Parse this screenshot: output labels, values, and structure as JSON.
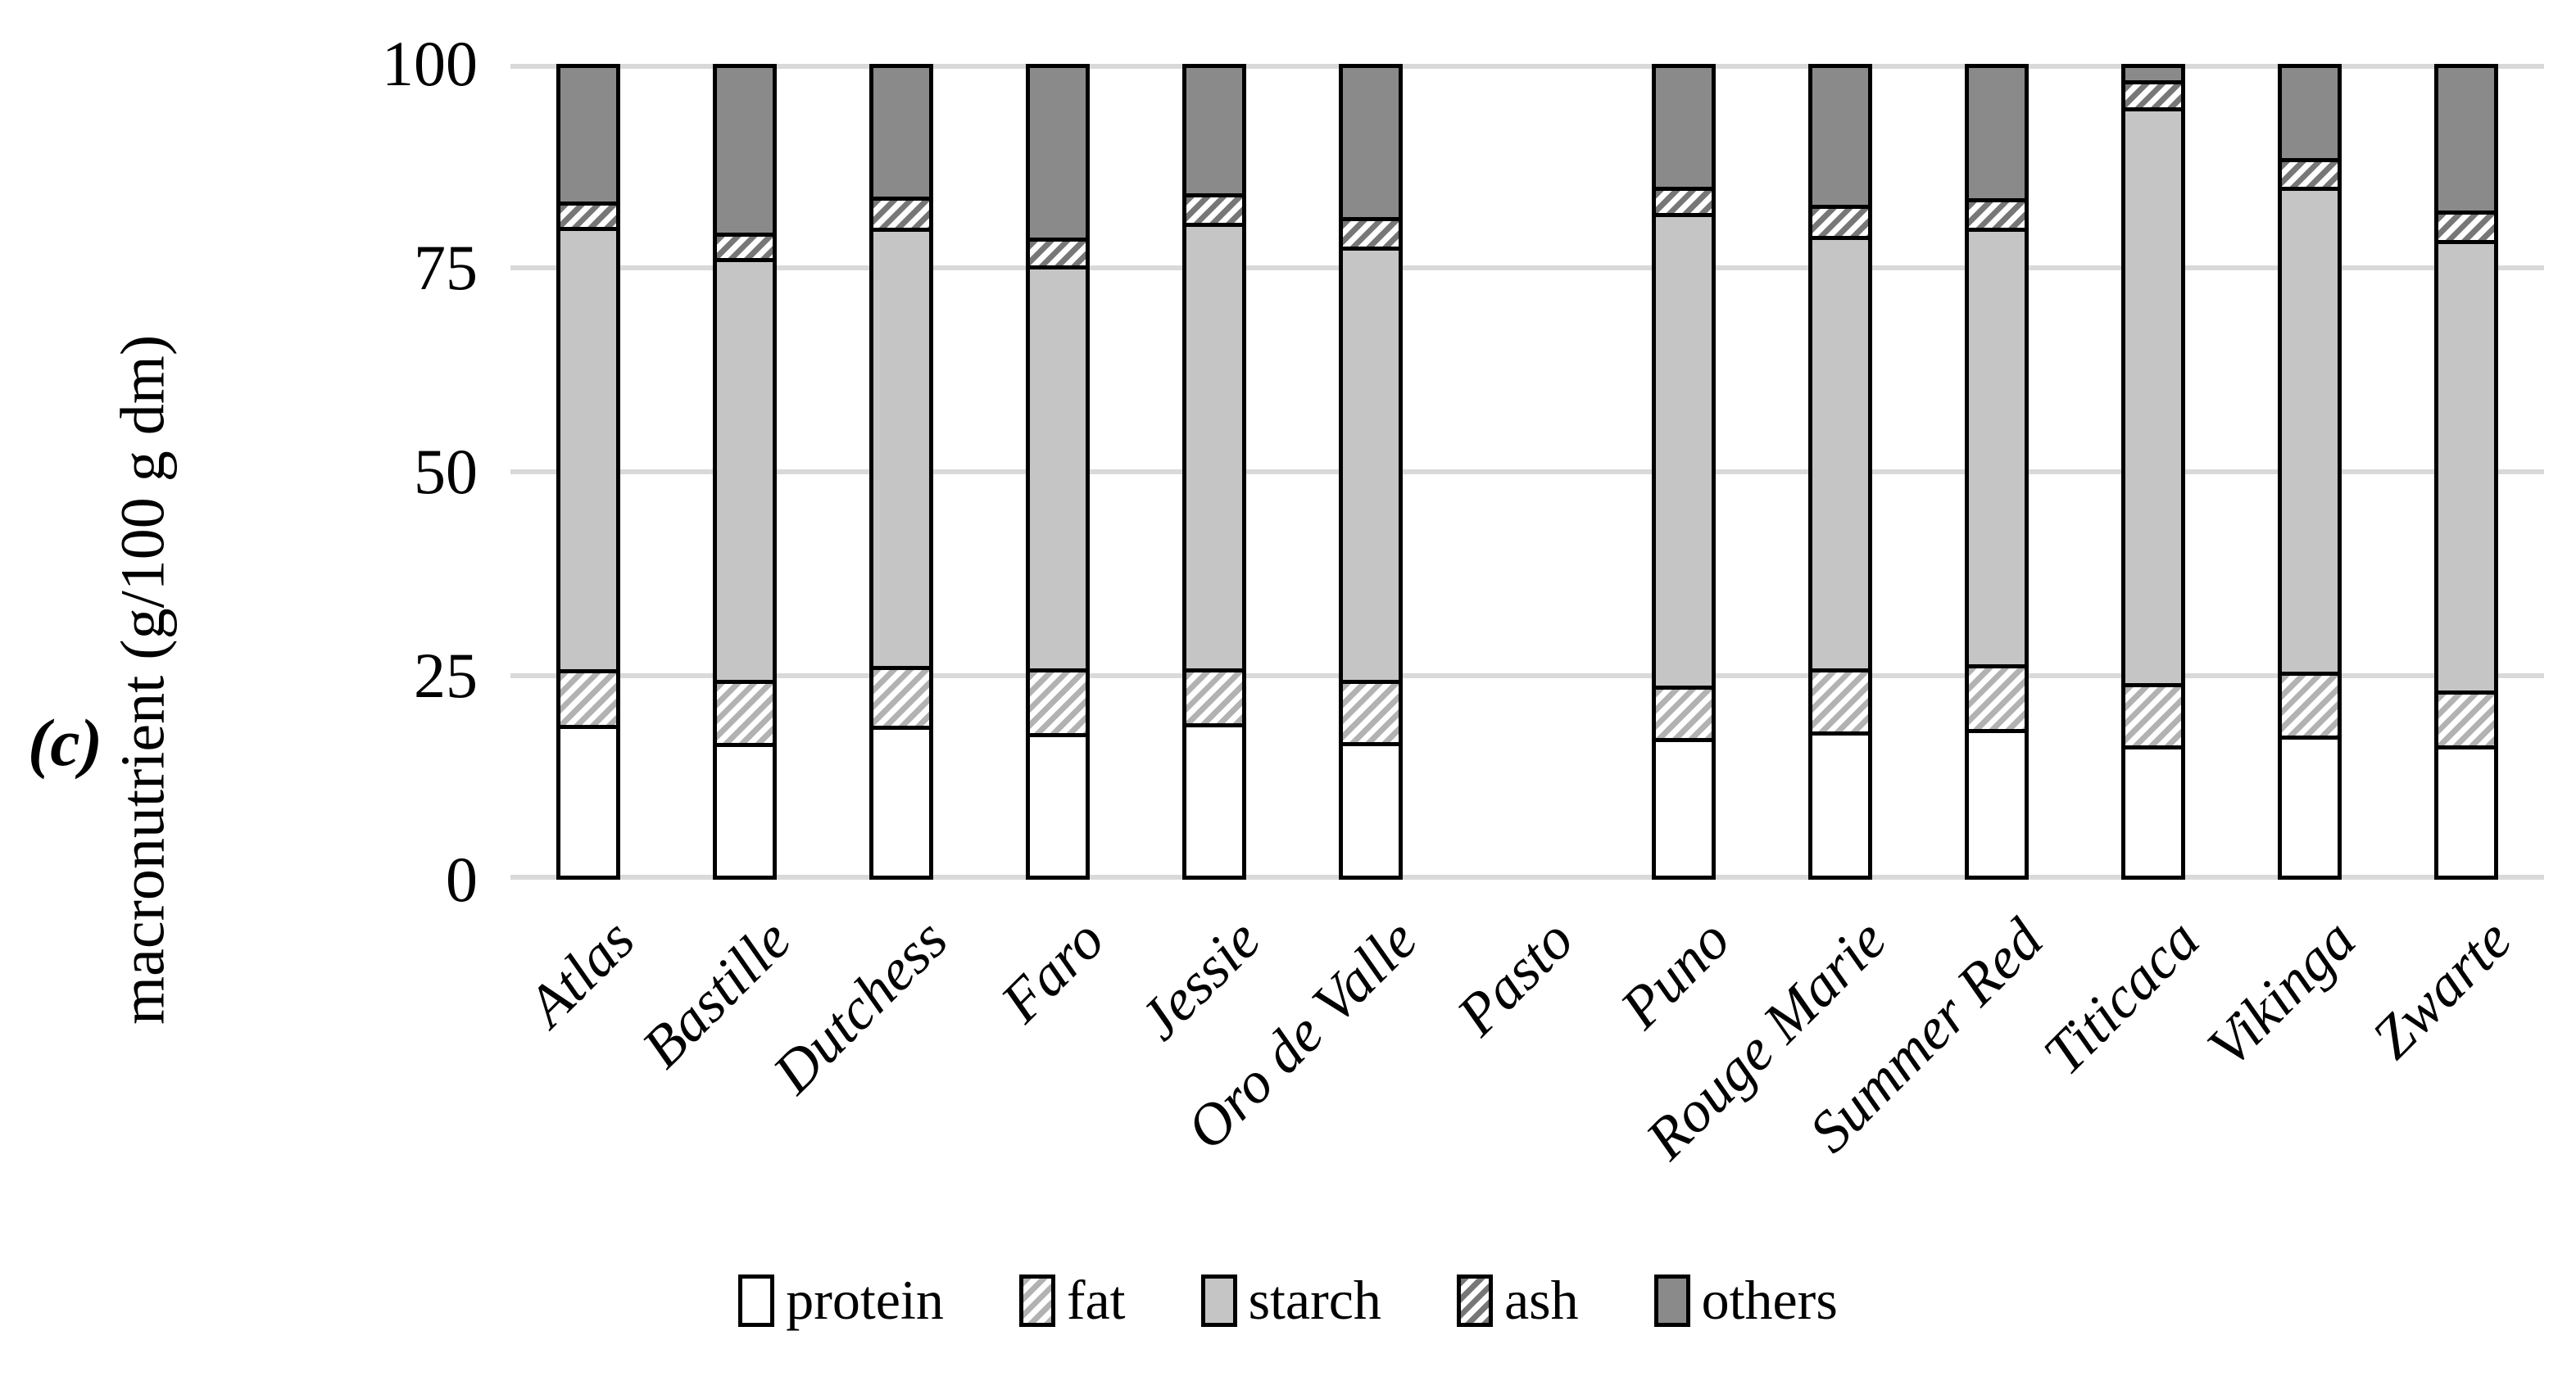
{
  "panel_label": "(c)",
  "chart_data": {
    "type": "bar",
    "stacked": true,
    "title": "",
    "xlabel": "",
    "ylabel": "macronutrient (g/100 g dm)",
    "ylim": [
      0,
      100
    ],
    "yticks": [
      0,
      25,
      50,
      75,
      100
    ],
    "grid": "horizontal",
    "legend_position": "bottom",
    "categories": [
      "Atlas",
      "Bastille",
      "Dutchess",
      "Faro",
      "Jessie",
      "Oro de Valle",
      "Pasto",
      "Puno",
      "Rouge Marie",
      "Summer Red",
      "Titicaca",
      "Vikinga",
      "Zwarte"
    ],
    "series": [
      {
        "name": "protein",
        "pattern": "white",
        "values": [
          18.5,
          16.3,
          18.4,
          17.5,
          18.7,
          16.4,
          null,
          16.9,
          17.7,
          18.0,
          15.9,
          17.2,
          15.9
        ]
      },
      {
        "name": "fat",
        "pattern": "hatch-light",
        "values": [
          6.6,
          7.4,
          7.1,
          7.7,
          6.5,
          7.3,
          null,
          6.1,
          7.5,
          7.7,
          7.4,
          7.5,
          6.5
        ]
      },
      {
        "name": "starch",
        "pattern": "solid-light",
        "values": [
          55.3,
          52.8,
          54.8,
          50.4,
          55.8,
          54.3,
          null,
          59.2,
          54.1,
          54.6,
          72.2,
          60.8,
          56.4
        ]
      },
      {
        "name": "ash",
        "pattern": "hatch-dark",
        "values": [
          2.7,
          2.7,
          3.4,
          3.0,
          3.2,
          3.2,
          null,
          2.8,
          3.4,
          3.2,
          2.9,
          3.1,
          3.2
        ]
      },
      {
        "name": "others",
        "pattern": "solid-dark",
        "values": [
          16.9,
          20.8,
          16.3,
          21.4,
          15.8,
          18.8,
          null,
          15.0,
          17.3,
          16.5,
          1.6,
          11.4,
          18.0
        ]
      }
    ],
    "missing_categories": [
      "Pasto"
    ]
  },
  "colors": {
    "protein_fill": "#ffffff",
    "fat_stripe": "#b2b2b2",
    "starch_fill": "#c5c5c5",
    "ash_stripe": "#777777",
    "others_fill": "#8a8a8a",
    "hatch_background": "#ffffff",
    "bar_border": "#000000",
    "gridline": "#d9d9d9",
    "text": "#000000"
  }
}
